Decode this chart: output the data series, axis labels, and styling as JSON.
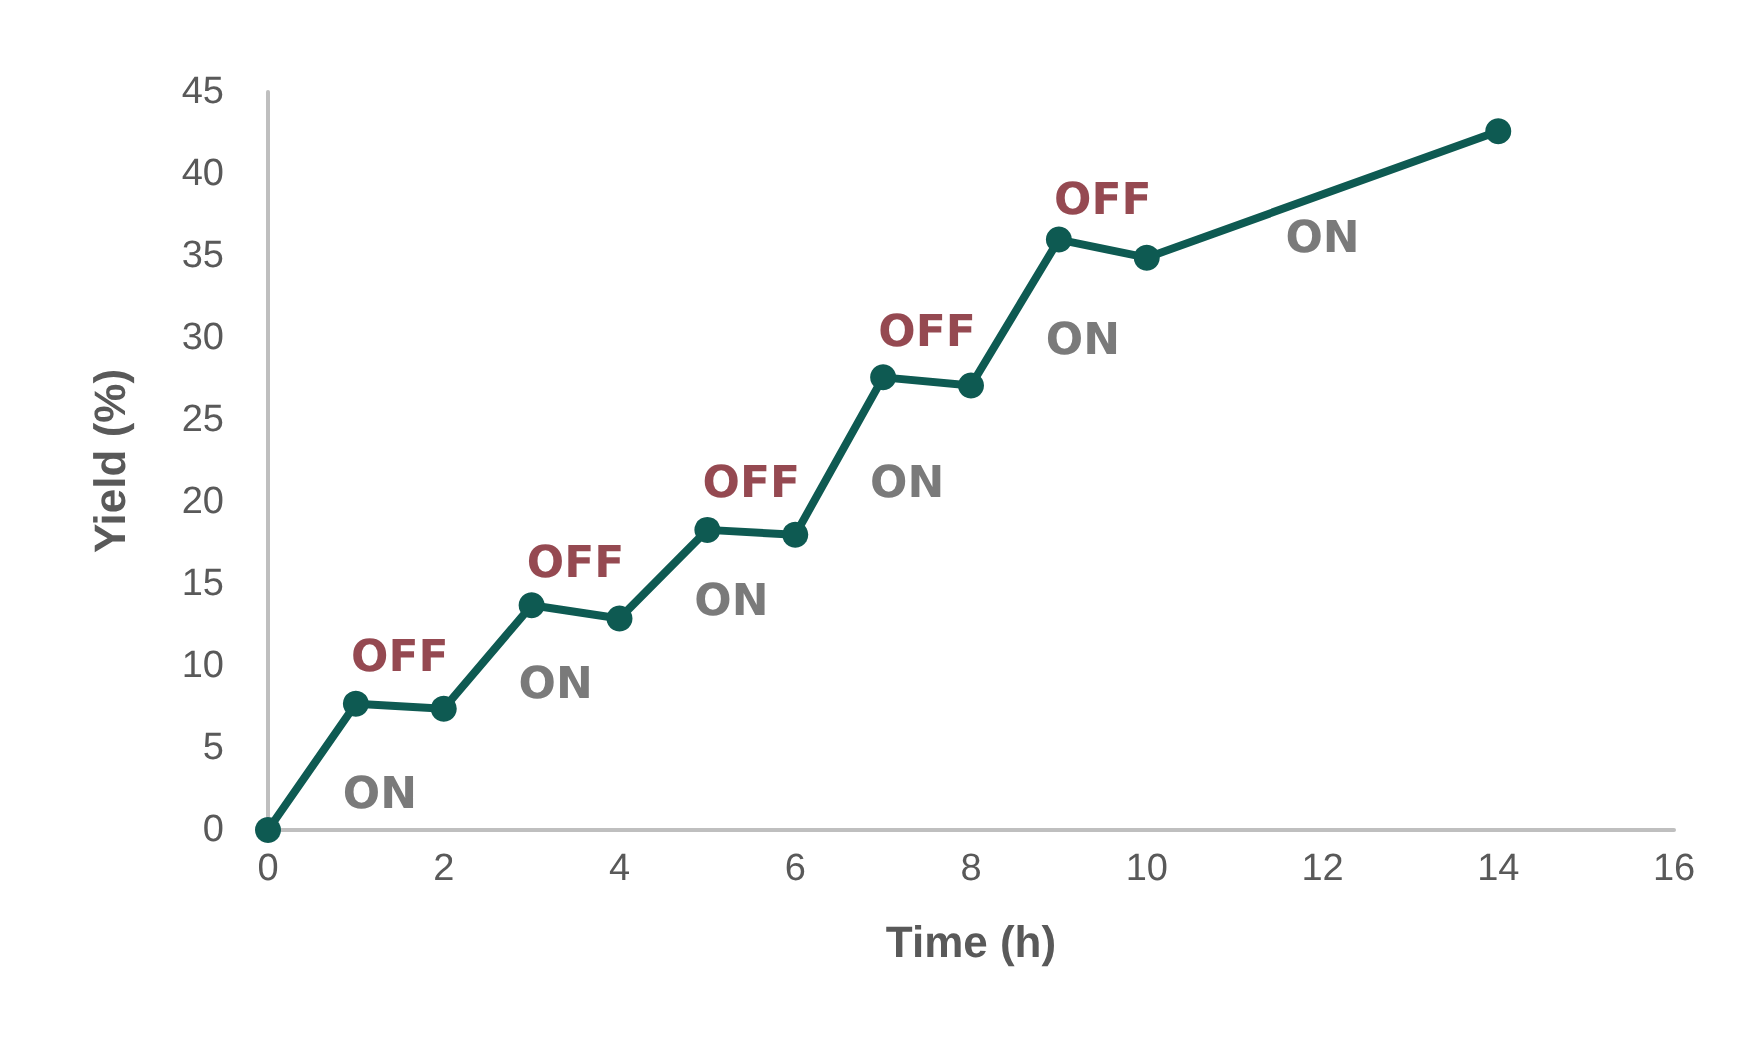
{
  "chart_data": {
    "type": "line",
    "xlabel": "Time (h)",
    "ylabel": "Yield (%)",
    "x": [
      0,
      1,
      2,
      3,
      4,
      5,
      6,
      7,
      8,
      9,
      10,
      14
    ],
    "series": [
      {
        "color": "#0e5a52",
        "values": [
          0,
          7.7,
          7.4,
          13.7,
          12.9,
          18.3,
          18.0,
          27.6,
          27.1,
          36.0,
          34.9,
          42.6
        ]
      }
    ],
    "xlim": [
      0,
      16
    ],
    "xticks": [
      0,
      2,
      4,
      6,
      8,
      10,
      12,
      14,
      16
    ],
    "ylim": [
      0,
      45
    ],
    "yticks": [
      0,
      5,
      10,
      15,
      20,
      25,
      30,
      35,
      40,
      45
    ],
    "grid": false,
    "marker": "circle",
    "line_style": "solid",
    "annotations": [
      "ON",
      "OFF",
      "ON",
      "OFF",
      "ON",
      "OFF",
      "ON",
      "OFF",
      "ON",
      "OFF",
      "ON"
    ]
  }
}
